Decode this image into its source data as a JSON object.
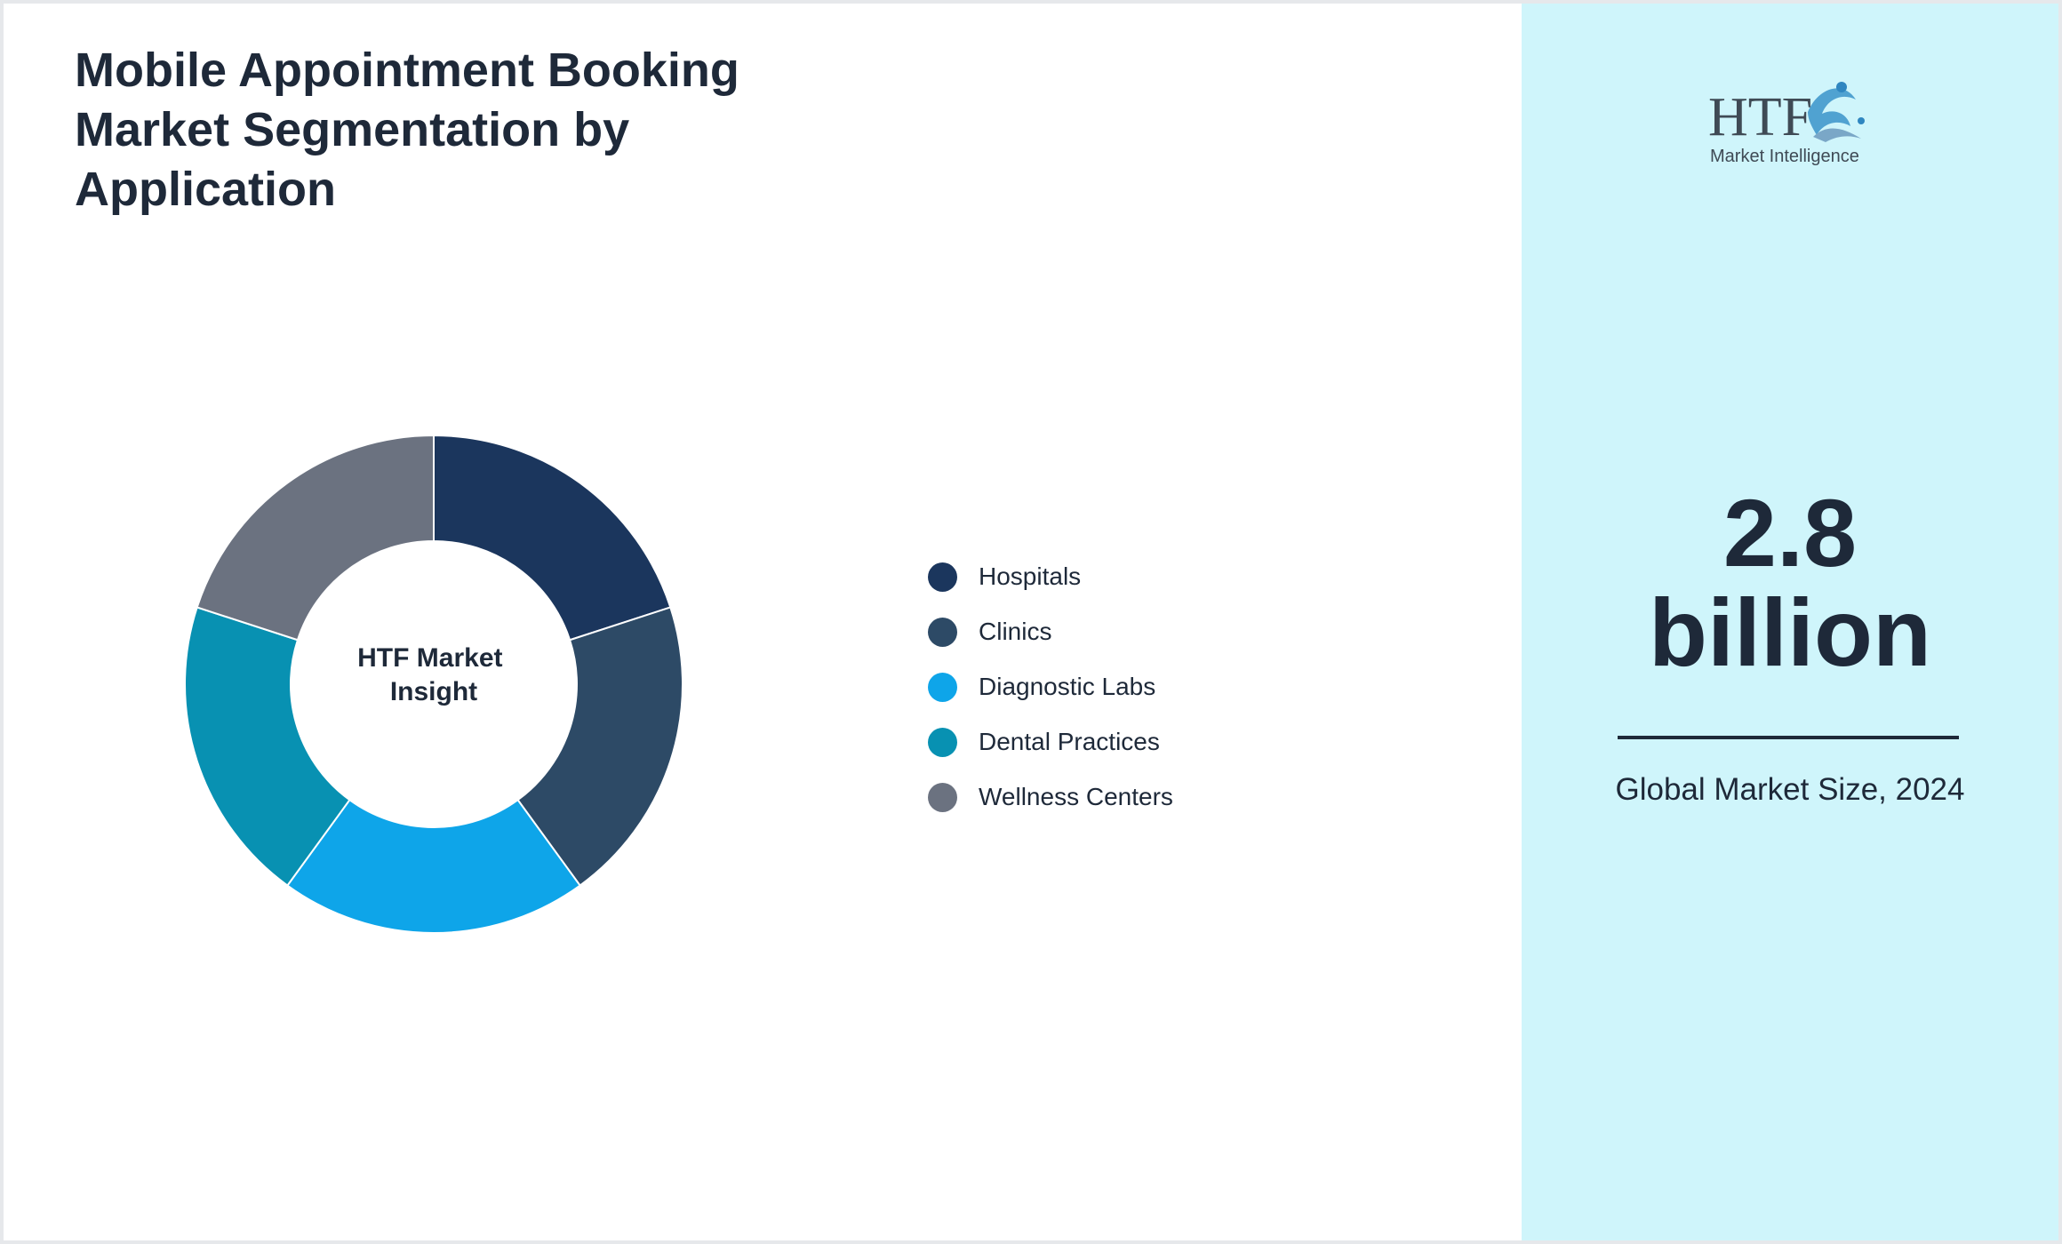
{
  "title": "Mobile Appointment Booking Market Segmentation by Application",
  "chart_data": {
    "type": "pie",
    "style": "donut",
    "center_label": "HTF Market Insight",
    "categories": [
      "Hospitals",
      "Clinics",
      "Diagnostic Labs",
      "Dental Practices",
      "Wellness Centers"
    ],
    "values": [
      20,
      20,
      20,
      20,
      20
    ],
    "colors": [
      "#1b365d",
      "#2d4a66",
      "#0ea5e9",
      "#0891b2",
      "#6b7280"
    ],
    "legend_position": "right"
  },
  "sidebar": {
    "logo_text": "HTF",
    "logo_subtext": "Market Intelligence",
    "market_size_value": "2.8",
    "market_size_unit": "billion",
    "market_size_caption": "Global Market Size, 2024",
    "background_color": "#cff5fb"
  }
}
